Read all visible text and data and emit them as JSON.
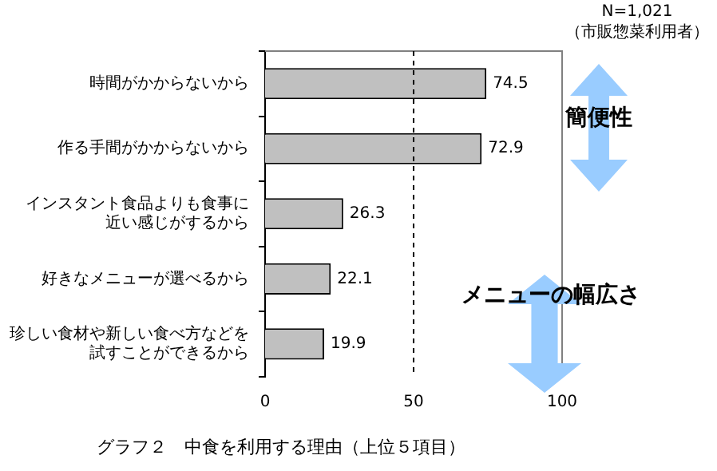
{
  "chart_data": {
    "type": "bar",
    "orientation": "horizontal",
    "title": "グラフ２　中食を利用する理由（上位５項目）",
    "categories": [
      "時間がかからないから",
      "作る手間がかからないから",
      "インスタント食品よりも食事に近い感じがするから",
      "好きなメニューが選べるから",
      "珍しい食材や新しい食べ方などを試すことができるから"
    ],
    "values": [
      74.5,
      72.9,
      26.3,
      22.1,
      19.9
    ],
    "color": "#c0c0c0",
    "data_labels": true,
    "xlim": [
      0,
      100
    ],
    "xticks": [
      0,
      50,
      100
    ],
    "grid": false,
    "legend": false,
    "ref_lines": [
      {
        "axis": "x",
        "value": 50,
        "line_style": "dashed",
        "color": "#000000"
      }
    ],
    "annotations": [
      "N=1,021",
      "（市販惣菜利用者）",
      "簡便性",
      "メニューの幅広さ"
    ]
  }
}
